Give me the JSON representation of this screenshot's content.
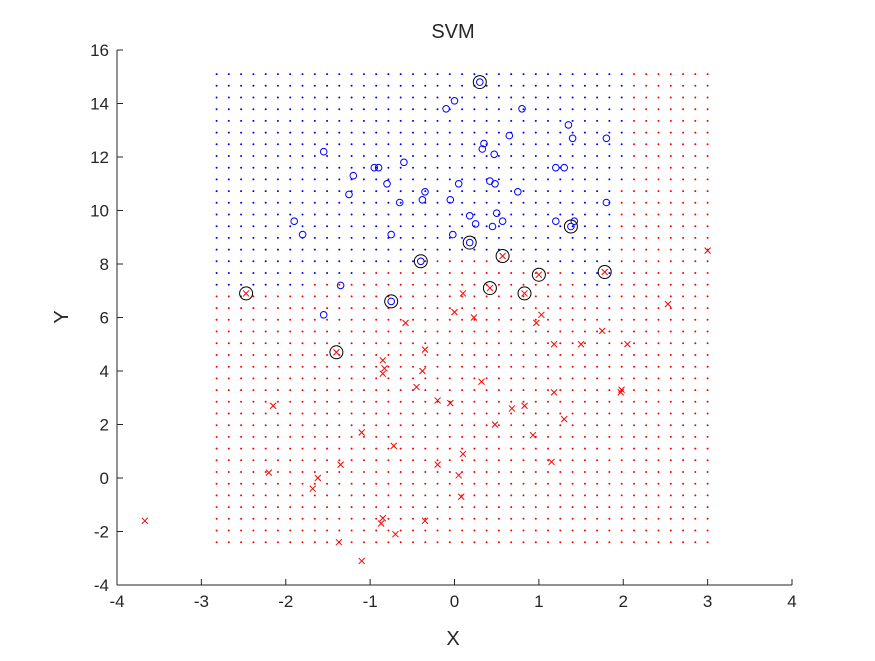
{
  "chart_data": {
    "type": "scatter",
    "title": "SVM",
    "xlabel": "X",
    "ylabel": "Y",
    "xlim": [
      -4,
      4
    ],
    "ylim": [
      -4,
      16
    ],
    "xticks": [
      "-4",
      "-3",
      "-2",
      "-1",
      "0",
      "1",
      "2",
      "3",
      "4"
    ],
    "yticks": [
      "-4",
      "-2",
      "0",
      "2",
      "4",
      "6",
      "8",
      "10",
      "12",
      "14",
      "16"
    ],
    "grid": false,
    "legend": "none",
    "colors": {
      "class_o": "#0000ff",
      "class_x": "#ff0000",
      "support_vector": "#000000",
      "axes": "#262626"
    },
    "decision_grid": {
      "description_values_only": true,
      "x_range": [
        -2.82,
        3.0
      ],
      "y_range": [
        -2.4,
        15.1
      ],
      "x_count": 41,
      "y_count": 41,
      "boundary": [
        [
          -2.8,
          6.9
        ],
        [
          -2.4,
          6.9
        ],
        [
          -2.0,
          7.0
        ],
        [
          -1.6,
          7.3
        ],
        [
          -1.2,
          7.6
        ],
        [
          -0.8,
          7.9
        ],
        [
          -0.4,
          8.1
        ],
        [
          0.0,
          8.3
        ],
        [
          0.4,
          8.4
        ],
        [
          0.8,
          8.2
        ],
        [
          1.2,
          7.8
        ],
        [
          1.6,
          7.1
        ],
        [
          1.85,
          6.6
        ],
        [
          2.1,
          15.1
        ]
      ],
      "upper_class": "o",
      "lower_class": "x"
    },
    "series": [
      {
        "marker": "o",
        "points": [
          [
            0.3,
            14.8
          ],
          [
            -0.1,
            13.8
          ],
          [
            0.0,
            14.1
          ],
          [
            0.8,
            13.8
          ],
          [
            1.35,
            13.2
          ],
          [
            1.4,
            12.7
          ],
          [
            1.8,
            12.7
          ],
          [
            0.65,
            12.8
          ],
          [
            0.35,
            12.5
          ],
          [
            0.33,
            12.3
          ],
          [
            0.47,
            12.1
          ],
          [
            -1.55,
            12.2
          ],
          [
            -0.6,
            11.8
          ],
          [
            -0.95,
            11.6
          ],
          [
            -0.9,
            11.6
          ],
          [
            -1.2,
            11.3
          ],
          [
            1.2,
            11.6
          ],
          [
            1.3,
            11.6
          ],
          [
            0.05,
            11.0
          ],
          [
            0.42,
            11.1
          ],
          [
            0.48,
            11.0
          ],
          [
            -0.8,
            11.0
          ],
          [
            -0.35,
            10.7
          ],
          [
            0.75,
            10.7
          ],
          [
            -1.25,
            10.6
          ],
          [
            -0.38,
            10.4
          ],
          [
            -0.65,
            10.3
          ],
          [
            -0.05,
            10.4
          ],
          [
            1.8,
            10.3
          ],
          [
            0.5,
            9.9
          ],
          [
            0.18,
            9.8
          ],
          [
            0.57,
            9.6
          ],
          [
            -1.9,
            9.6
          ],
          [
            0.25,
            9.5
          ],
          [
            1.2,
            9.6
          ],
          [
            1.42,
            9.6
          ],
          [
            0.45,
            9.4
          ],
          [
            -1.8,
            9.1
          ],
          [
            -0.75,
            9.1
          ],
          [
            -0.02,
            9.1
          ],
          [
            1.38,
            9.4
          ],
          [
            0.18,
            8.8
          ],
          [
            -0.4,
            8.1
          ],
          [
            -1.35,
            7.2
          ],
          [
            -0.75,
            6.6
          ],
          [
            -1.55,
            6.1
          ]
        ]
      },
      {
        "marker": "x",
        "points": [
          [
            3.0,
            8.5
          ],
          [
            0.57,
            8.3
          ],
          [
            1.0,
            7.6
          ],
          [
            1.78,
            7.7
          ],
          [
            0.42,
            7.1
          ],
          [
            0.83,
            6.9
          ],
          [
            0.1,
            6.9
          ],
          [
            -2.47,
            6.9
          ],
          [
            2.53,
            6.5
          ],
          [
            0.0,
            6.2
          ],
          [
            0.23,
            6.0
          ],
          [
            1.03,
            6.1
          ],
          [
            0.97,
            5.8
          ],
          [
            -0.58,
            5.8
          ],
          [
            1.75,
            5.5
          ],
          [
            2.05,
            5.0
          ],
          [
            1.5,
            5.0
          ],
          [
            1.18,
            5.0
          ],
          [
            -1.4,
            4.7
          ],
          [
            -0.35,
            4.8
          ],
          [
            -0.85,
            4.4
          ],
          [
            -0.83,
            4.1
          ],
          [
            -0.85,
            3.9
          ],
          [
            -0.38,
            4.0
          ],
          [
            0.32,
            3.6
          ],
          [
            -0.45,
            3.4
          ],
          [
            1.98,
            3.3
          ],
          [
            1.97,
            3.2
          ],
          [
            1.18,
            3.2
          ],
          [
            -0.2,
            2.9
          ],
          [
            -0.05,
            2.8
          ],
          [
            -2.15,
            2.7
          ],
          [
            0.83,
            2.7
          ],
          [
            0.68,
            2.6
          ],
          [
            1.3,
            2.2
          ],
          [
            0.48,
            2.0
          ],
          [
            0.93,
            1.6
          ],
          [
            -1.1,
            1.7
          ],
          [
            -0.72,
            1.2
          ],
          [
            0.1,
            0.9
          ],
          [
            -0.2,
            0.5
          ],
          [
            -1.35,
            0.5
          ],
          [
            1.15,
            0.6
          ],
          [
            -2.2,
            0.2
          ],
          [
            0.05,
            0.1
          ],
          [
            -1.62,
            0.0
          ],
          [
            -1.68,
            -0.4
          ],
          [
            0.08,
            -0.7
          ],
          [
            -3.67,
            -1.6
          ],
          [
            -0.85,
            -1.5
          ],
          [
            -0.87,
            -1.7
          ],
          [
            -0.35,
            -1.6
          ],
          [
            -0.7,
            -2.1
          ],
          [
            -1.37,
            -2.4
          ],
          [
            -1.1,
            -3.1
          ]
        ]
      }
    ],
    "support_vectors": [
      [
        0.3,
        14.8
      ],
      [
        1.38,
        9.4
      ],
      [
        0.18,
        8.8
      ],
      [
        -0.4,
        8.1
      ],
      [
        0.57,
        8.3
      ],
      [
        1.0,
        7.6
      ],
      [
        1.78,
        7.7
      ],
      [
        0.42,
        7.1
      ],
      [
        0.83,
        6.9
      ],
      [
        -2.47,
        6.9
      ],
      [
        -0.75,
        6.6
      ],
      [
        -1.4,
        4.7
      ]
    ]
  }
}
